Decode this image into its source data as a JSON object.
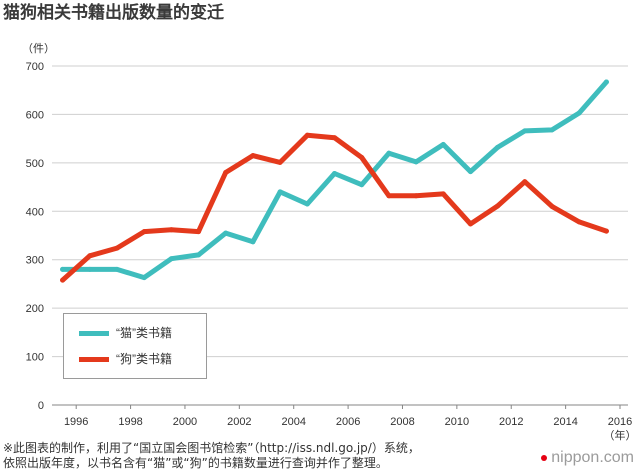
{
  "chart_data": {
    "type": "line",
    "title": "猫狗相关书籍出版数量的变迁",
    "ylabel": "（件）",
    "xlabel": "（年）",
    "xlim": [
      1995,
      2016
    ],
    "ylim": [
      0,
      700
    ],
    "xticks": [
      1996,
      1998,
      2000,
      2002,
      2004,
      2006,
      2008,
      2010,
      2012,
      2014,
      2016
    ],
    "yticks": [
      0,
      100,
      200,
      300,
      400,
      500,
      600,
      700
    ],
    "grid": "horizontal",
    "legend": "bottom-left",
    "x": [
      1995,
      1996,
      1997,
      1998,
      1999,
      2000,
      2001,
      2002,
      2003,
      2004,
      2005,
      2006,
      2007,
      2008,
      2009,
      2010,
      2011,
      2012,
      2013,
      2014,
      2015
    ],
    "series": [
      {
        "name": "“猫”类书籍",
        "color": "#3fbdbd",
        "values": [
          280,
          280,
          280,
          263,
          302,
          310,
          355,
          337,
          440,
          415,
          478,
          455,
          520,
          502,
          538,
          482,
          532,
          566,
          568,
          603,
          667
        ]
      },
      {
        "name": "“狗”类书籍",
        "color": "#e4391c",
        "values": [
          258,
          308,
          324,
          358,
          362,
          358,
          480,
          515,
          501,
          557,
          552,
          511,
          432,
          432,
          436,
          374,
          411,
          461,
          410,
          378,
          359
        ]
      }
    ]
  },
  "footer": {
    "note_line1": "※此图表的制作，利用了“国立国会图书馆检索”（http://iss.ndl.go.jp/）系统，",
    "note_line2": "依照出版年度，以书名含有“猫”或“狗”的书籍数量进行查询并作了整理。",
    "logo": "nippon.com"
  }
}
